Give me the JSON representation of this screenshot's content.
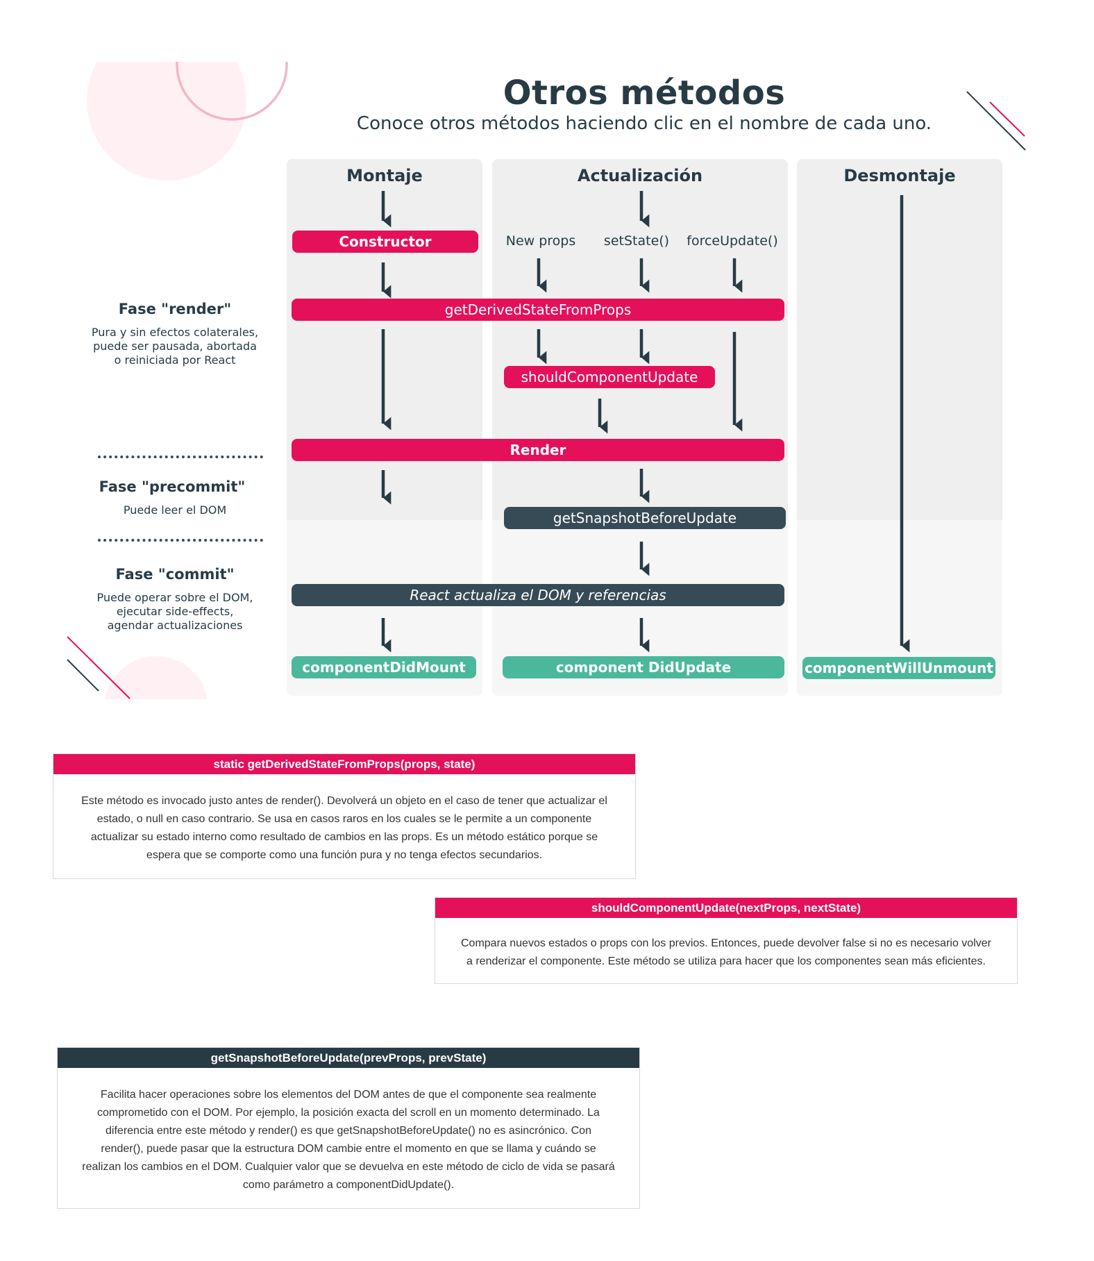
{
  "header": {
    "title": "Otros métodos",
    "subtitle": "Conoce otros métodos haciendo clic en el nombre de cada uno."
  },
  "columns": {
    "mount": "Montaje",
    "update": "Actualización",
    "unmount": "Desmontaje"
  },
  "triggers": {
    "new_props": "New props",
    "set_state": "setState()",
    "force_update": "forceUpdate()"
  },
  "methods": {
    "constructor": "Constructor",
    "gdsfp": "getDerivedStateFromProps",
    "scu": "shouldComponentUpdate",
    "render": "Render",
    "gsbu": "getSnapshotBeforeUpdate",
    "react_updates": "React actualiza el DOM y referencias",
    "cdm": "componentDidMount",
    "cdu": "component DidUpdate",
    "cwu": "componentWillUnmount"
  },
  "phases": {
    "render": {
      "title": "Fase \"render\"",
      "l1": "Pura y sin efectos colaterales,",
      "l2": "puede ser pausada, abortada",
      "l3": "o reiniciada por React"
    },
    "precommit": {
      "title": "Fase \"precommit\"",
      "l1": "Puede leer el DOM"
    },
    "commit": {
      "title": "Fase \"commit\"",
      "l1": "Puede operar sobre el DOM,",
      "l2": "ejecutar side-effects,",
      "l3": "agendar actualizaciones"
    }
  },
  "cards": [
    {
      "title": "static getDerivedStateFromProps(props, state)",
      "l1": "Este método es invocado justo antes de render(). Devolverá un objeto en el caso de tener que actualizar el",
      "l2": "estado, o null en caso contrario. Se usa en casos raros en los cuales se le permite a un componente",
      "l3": "actualizar su estado interno como resultado de cambios en las props. Es un método estático porque se",
      "l4": "espera que se comporte como una función pura y no tenga efectos secundarios."
    },
    {
      "title": "shouldComponentUpdate(nextProps, nextState)",
      "l1": "Compara nuevos estados o props con los previos. Entonces, puede devolver false si no es necesario volver",
      "l2": "a renderizar el componente. Este método se utiliza para hacer que los componentes sean más eficientes."
    },
    {
      "title": "getSnapshotBeforeUpdate(prevProps, prevState)",
      "l1": "Facilita hacer operaciones sobre los elementos del DOM antes de que el componente sea realmente",
      "l2": "comprometido con el DOM. Por ejemplo, la posición exacta del scroll en un momento determinado. La",
      "l3": "diferencia entre este método y render() es que getSnapshotBeforeUpdate() no es asincrónico. Con",
      "l4": "render(), puede pasar que la estructura DOM cambie entre el momento en que se llama y cuándo se",
      "l5": "realizan los cambios en el DOM. Cualquier valor que se devuelva en este método de ciclo de vida se pasará",
      "l6": "como parámetro a componentDidUpdate()."
    }
  ],
  "colors": {
    "pink": "#e5105a",
    "dark": "#374b57",
    "teal": "#4bb89c",
    "text": "#283b44"
  }
}
